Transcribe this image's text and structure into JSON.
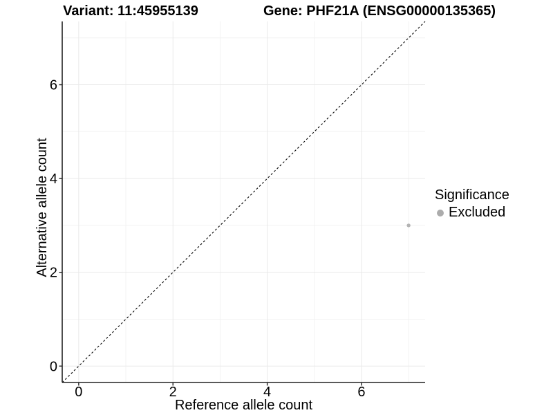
{
  "colors": {
    "background": "#ffffff",
    "point": "#b3b3b3",
    "legend_key": "#acacac",
    "grid_major": "#e9e9e9",
    "grid_minor": "#f2f2f2",
    "axis_line": "#222222",
    "reference_line": "#000000",
    "text": "#000000"
  },
  "chart_data": {
    "type": "scatter",
    "title_left": "Variant: 11:45955139",
    "title_right": "Gene: PHF21A (ENSG00000135365)",
    "xlabel": "Reference allele count",
    "ylabel": "Alternative allele count",
    "xlim": [
      -0.35,
      7.35
    ],
    "ylim": [
      -0.35,
      7.35
    ],
    "x_major_ticks": [
      0,
      2,
      4,
      6
    ],
    "y_major_ticks": [
      0,
      2,
      4,
      6
    ],
    "x_minor_ticks": [
      1,
      3,
      5,
      7
    ],
    "y_minor_ticks": [
      1,
      3,
      5,
      7
    ],
    "grid": "major_and_minor",
    "reference_line": {
      "type": "identity",
      "slope": 1,
      "intercept": 0,
      "style": "dashed"
    },
    "series": [
      {
        "name": "Excluded",
        "color": "#b3b3b3",
        "points": [
          {
            "x": 7,
            "y": 3
          }
        ]
      }
    ],
    "legend": {
      "title": "Significance",
      "position": "right"
    }
  }
}
